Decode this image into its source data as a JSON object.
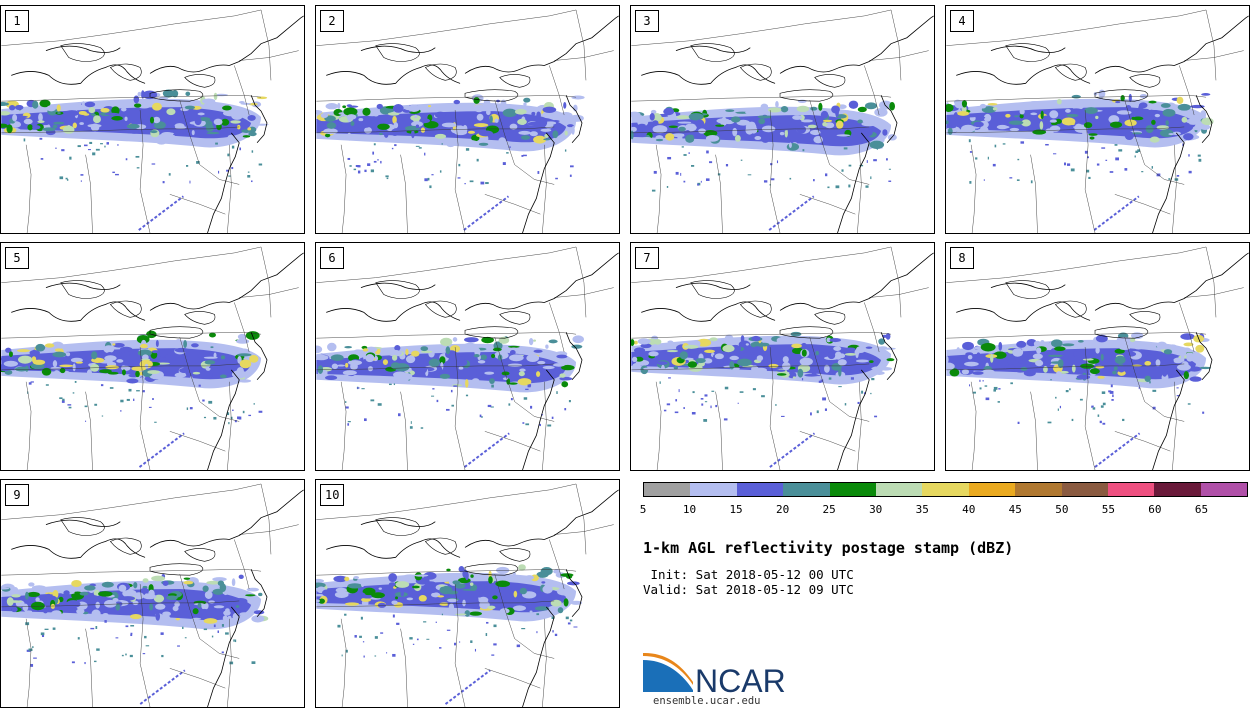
{
  "panels": [
    {
      "label": "1"
    },
    {
      "label": "2"
    },
    {
      "label": "3"
    },
    {
      "label": "4"
    },
    {
      "label": "5"
    },
    {
      "label": "6"
    },
    {
      "label": "7"
    },
    {
      "label": "8"
    },
    {
      "label": "9"
    },
    {
      "label": "10"
    }
  ],
  "colorbar": {
    "colors": [
      "#a0a0a0",
      "#b4bef0",
      "#5a5fd8",
      "#4a8f99",
      "#0a8a0a",
      "#bcdcb4",
      "#e6d860",
      "#eaaa20",
      "#b07830",
      "#8a5a40",
      "#ee5080",
      "#6a1a3a",
      "#b050a8"
    ],
    "ticks": [
      "5",
      "10",
      "15",
      "20",
      "25",
      "30",
      "35",
      "40",
      "45",
      "50",
      "55",
      "60",
      "65"
    ]
  },
  "title": "1-km AGL reflectivity postage stamp (dBZ)",
  "init": " Init: Sat 2018-05-12 00 UTC",
  "valid": "Valid: Sat 2018-05-12 09 UTC",
  "logo": {
    "text": "NCAR",
    "url": "ensemble.ucar.edu"
  }
}
